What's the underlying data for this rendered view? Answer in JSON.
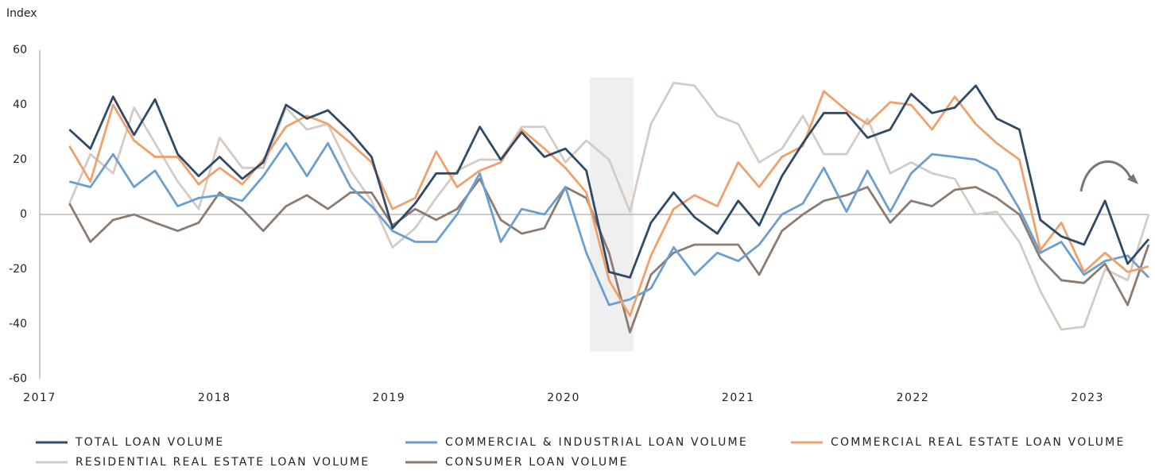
{
  "chart_data": {
    "type": "line",
    "y_label": "Index",
    "xlim": [
      2017,
      2023.35
    ],
    "xticks": [
      2017,
      2018,
      2019,
      2020,
      2021,
      2022,
      2023
    ],
    "ylim": [
      -60,
      60
    ],
    "yticks": [
      -60,
      -40,
      -20,
      0,
      20,
      40,
      60
    ],
    "shaded_region": {
      "x": [
        2020.15,
        2020.4
      ],
      "y": [
        -50,
        50
      ]
    },
    "x": [
      2017.17,
      2017.29,
      2017.42,
      2017.54,
      2017.66,
      2017.79,
      2017.91,
      2018.03,
      2018.16,
      2018.28,
      2018.41,
      2018.53,
      2018.65,
      2018.78,
      2018.9,
      2019.02,
      2019.15,
      2019.27,
      2019.39,
      2019.52,
      2019.64,
      2019.76,
      2019.89,
      2020.01,
      2020.13,
      2020.26,
      2020.38,
      2020.5,
      2020.63,
      2020.75,
      2020.88,
      2021.0,
      2021.12,
      2021.25,
      2021.37,
      2021.49,
      2021.62,
      2021.74,
      2021.87,
      2021.99,
      2022.11,
      2022.24,
      2022.36,
      2022.48,
      2022.61,
      2022.73,
      2022.85,
      2022.98,
      2023.1,
      2023.23,
      2023.35
    ],
    "series": [
      {
        "name": "TOTAL LOAN VOLUME",
        "color": "#2e4a66",
        "values": [
          31,
          24,
          43,
          29,
          42,
          22,
          14,
          21,
          13,
          19,
          40,
          35,
          38,
          30,
          21,
          -5,
          4,
          15,
          15,
          32,
          20,
          30,
          21,
          24,
          16,
          -21,
          -23,
          -3,
          8,
          -1,
          -7,
          5,
          -4,
          14,
          26,
          37,
          37,
          28,
          31,
          44,
          37,
          39,
          47,
          35,
          31,
          -2,
          -8,
          -11,
          5,
          -18,
          -9
        ]
      },
      {
        "name": "COMMERCIAL & INDUSTRIAL LOAN VOLUME",
        "color": "#6a9fd0",
        "values": [
          12,
          10,
          22,
          10,
          16,
          3,
          6,
          7,
          5,
          14,
          26,
          14,
          26,
          10,
          3,
          -6,
          -10,
          -10,
          0,
          15,
          -10,
          2,
          0,
          10,
          -14,
          -33,
          -31,
          -27,
          -12,
          -22,
          -14,
          -17,
          -11,
          0,
          4,
          17,
          1,
          16,
          1,
          15,
          22,
          21,
          20,
          16,
          2,
          -14,
          -10,
          -22,
          -17,
          -15,
          -23
        ]
      },
      {
        "name": "COMMERCIAL REAL ESTATE LOAN VOLUME",
        "color": "#f0a06a",
        "values": [
          25,
          12,
          40,
          27,
          21,
          21,
          11,
          17,
          11,
          20,
          32,
          36,
          33,
          26,
          19,
          2,
          6,
          23,
          10,
          16,
          19,
          31,
          24,
          17,
          8,
          -24,
          -37,
          -15,
          2,
          7,
          3,
          19,
          10,
          21,
          25,
          45,
          38,
          33,
          41,
          40,
          31,
          43,
          33,
          26,
          20,
          -13,
          -3,
          -21,
          -14,
          -21,
          -19
        ]
      },
      {
        "name": "RESIDENTIAL REAL ESTATE LOAN VOLUME",
        "color": "#d4cbc3",
        "values": [
          4,
          22,
          15,
          39,
          26,
          12,
          2,
          28,
          17,
          17,
          39,
          31,
          33,
          16,
          5,
          -12,
          -5,
          6,
          16,
          20,
          20,
          32,
          32,
          19,
          27,
          20,
          1,
          33,
          48,
          47,
          36,
          33,
          19,
          24,
          36,
          22,
          22,
          35,
          15,
          19,
          15,
          13,
          0,
          1,
          -10,
          -28,
          -42,
          -41,
          -20,
          -24,
          0
        ]
      },
      {
        "name": "CONSUMER LOAN VOLUME",
        "color": "#8c7b6e",
        "values": [
          4,
          -10,
          -2,
          0,
          -3,
          -6,
          -3,
          8,
          2,
          -6,
          3,
          7,
          2,
          8,
          8,
          -4,
          2,
          -2,
          2,
          13,
          -2,
          -7,
          -5,
          10,
          6,
          -14,
          -43,
          -22,
          -14,
          -11,
          -11,
          -11,
          -22,
          -6,
          0,
          5,
          7,
          10,
          -3,
          5,
          3,
          9,
          10,
          6,
          0,
          -16,
          -24,
          -25,
          -18,
          -33,
          -11
        ]
      }
    ]
  }
}
